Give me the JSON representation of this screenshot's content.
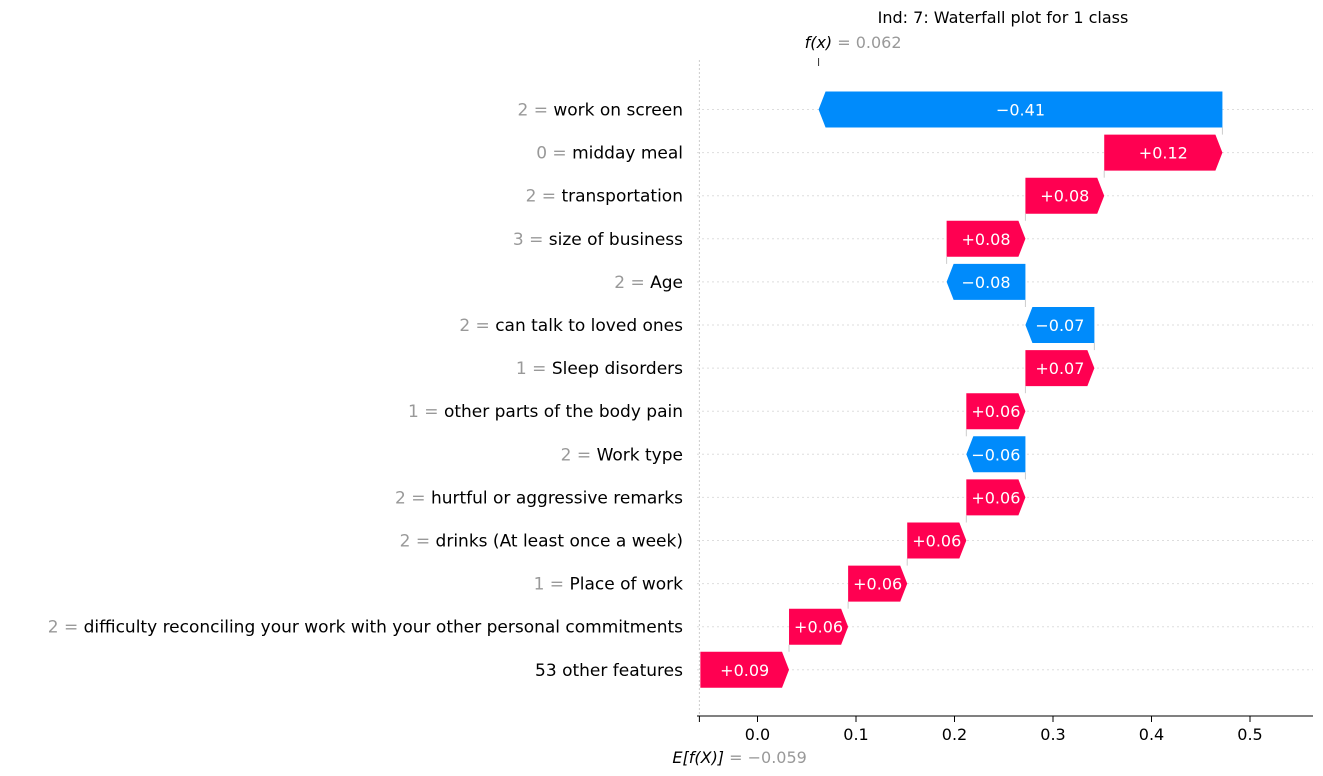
{
  "chart_data": {
    "type": "waterfall",
    "title": "Ind: 7: Waterfall plot for 1 class",
    "fx": {
      "label": "f(x)",
      "equals": " = ",
      "value_text": "0.062",
      "value": 0.062
    },
    "efx": {
      "label": "E[f(X)]",
      "equals": " = ",
      "value_text": "−0.059",
      "value": -0.059
    },
    "features": [
      {
        "value": "2",
        "name": "work on screen",
        "contribution": -0.41,
        "label": "−0.41"
      },
      {
        "value": "0",
        "name": "midday meal",
        "contribution": 0.12,
        "label": "+0.12"
      },
      {
        "value": "2",
        "name": "transportation",
        "contribution": 0.08,
        "label": "+0.08"
      },
      {
        "value": "3",
        "name": "size of business",
        "contribution": 0.08,
        "label": "+0.08"
      },
      {
        "value": "2",
        "name": "Age",
        "contribution": -0.08,
        "label": "−0.08"
      },
      {
        "value": "2",
        "name": "can talk to loved ones",
        "contribution": -0.07,
        "label": "−0.07"
      },
      {
        "value": "1",
        "name": "Sleep disorders",
        "contribution": 0.07,
        "label": "+0.07"
      },
      {
        "value": "1",
        "name": "other parts of the body pain",
        "contribution": 0.06,
        "label": "+0.06"
      },
      {
        "value": "2",
        "name": "Work type",
        "contribution": -0.06,
        "label": "−0.06"
      },
      {
        "value": "2",
        "name": "hurtful or aggressive remarks",
        "contribution": 0.06,
        "label": "+0.06"
      },
      {
        "value": "2",
        "name": "drinks (At least once a week)",
        "contribution": 0.06,
        "label": "+0.06"
      },
      {
        "value": "1",
        "name": "Place of work",
        "contribution": 0.06,
        "label": "+0.06"
      },
      {
        "value": "2",
        "name": "difficulty reconciling your work with your other personal commitments",
        "contribution": 0.06,
        "label": "+0.06"
      },
      {
        "value": "",
        "name": "53 other features",
        "contribution": 0.09,
        "label": "+0.09"
      }
    ],
    "x_ticks": [
      {
        "value": 0.0,
        "label": "0.0"
      },
      {
        "value": 0.1,
        "label": "0.1"
      },
      {
        "value": 0.2,
        "label": "0.2"
      },
      {
        "value": 0.3,
        "label": "0.3"
      },
      {
        "value": 0.4,
        "label": "0.4"
      },
      {
        "value": 0.5,
        "label": "0.5"
      }
    ],
    "xlim": [
      -0.059,
      0.56
    ],
    "colors": {
      "positive": "#ff0051",
      "negative": "#008bfb",
      "grid": "#cccccc",
      "muted": "#999999"
    }
  }
}
